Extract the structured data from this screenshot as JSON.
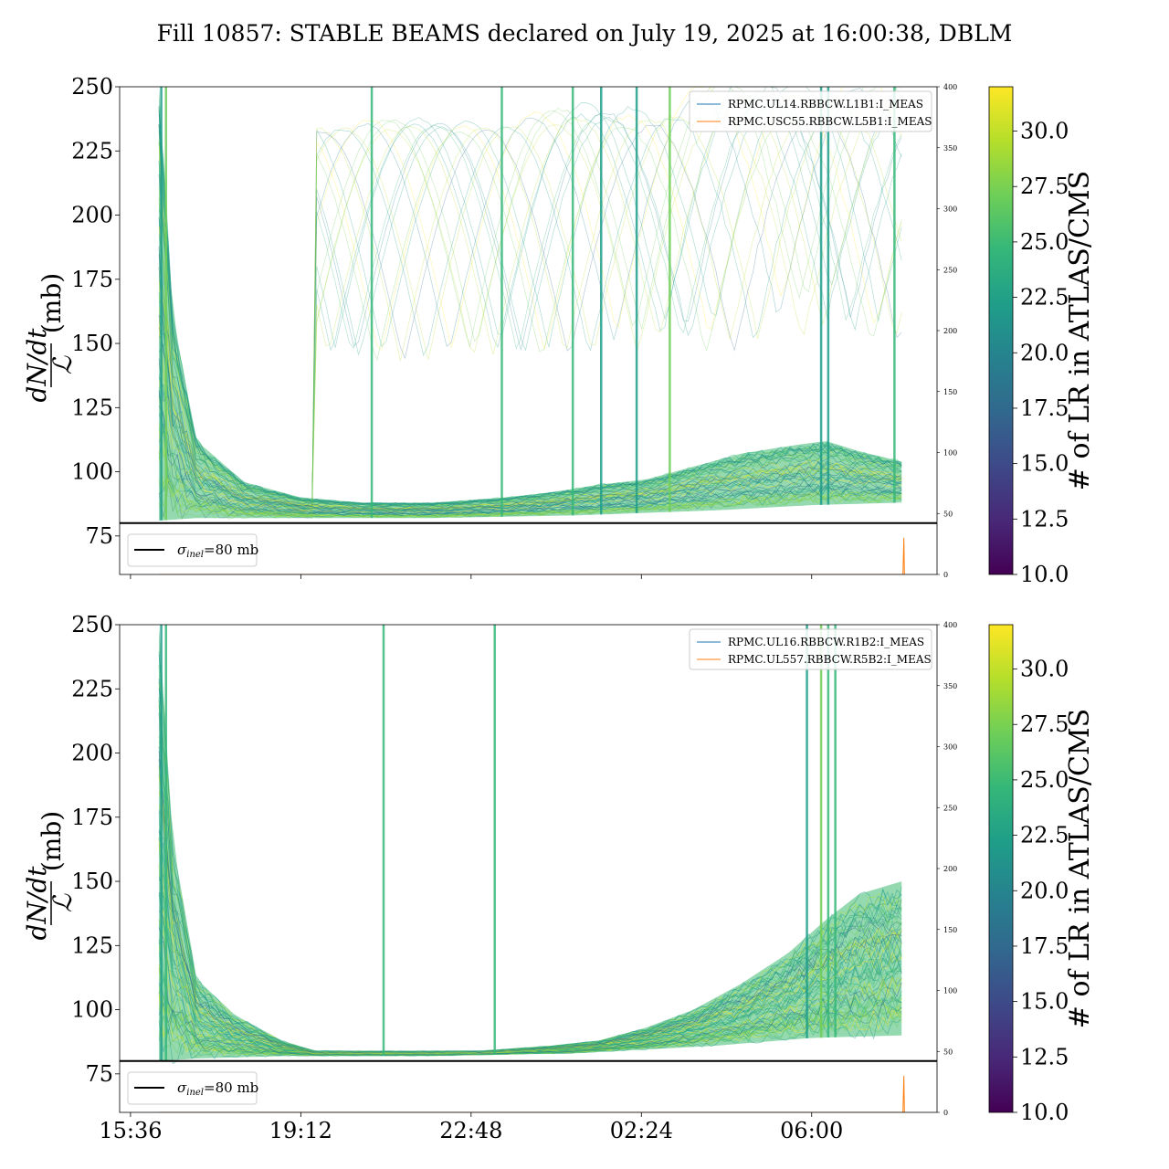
{
  "title": "Fill 10857: STABLE BEAMS declared on July 19, 2025 at 16:00:38, DBLM",
  "colors": {
    "cmap": [
      "#440154",
      "#482878",
      "#3e4989",
      "#31688e",
      "#26828e",
      "#1f9e89",
      "#35b779",
      "#6ece58",
      "#b5de2b",
      "#fde725"
    ],
    "legend_blue": "#1f77b4",
    "legend_orange": "#ff7f0e",
    "reference_line": "#000000",
    "dense_fill": "#3cb96f"
  },
  "chart_data": [
    {
      "type": "line",
      "panel": "top",
      "ylabel_expr": "dN/dt",
      "ylabel_denom": "ℒ",
      "ylabel_unit": "(mb)",
      "ylim": [
        60,
        250
      ],
      "yticks": [
        75,
        100,
        125,
        150,
        175,
        200,
        225,
        250
      ],
      "xlim_hours": [
        15.37,
        8.65
      ],
      "xticks": [
        "15:36",
        "19:12",
        "22:48",
        "02:24",
        "06:00"
      ],
      "show_xtick_labels": false,
      "right_axis": {
        "ylim": [
          0,
          400
        ],
        "ticks": [
          0,
          50,
          100,
          150,
          200,
          250,
          300,
          350,
          400
        ]
      },
      "legend": [
        "RPMC.UL14.RBBCW.L1B1:I_MEAS",
        "RPMC.USC55.RBBCW.L5B1:I_MEAS"
      ],
      "reference_line": {
        "y": 80,
        "label_symbol": "σ",
        "label_sub": "inel",
        "label_rest": "=80 mb"
      },
      "colorbar": {
        "label": "# of LR in ATLAS/CMS",
        "range": [
          10,
          32
        ],
        "ticks": [
          "10.0",
          "12.5",
          "15.0",
          "17.5",
          "20.0",
          "22.5",
          "25.0",
          "27.5",
          "30.0"
        ]
      },
      "bundle_upper_envelope": [
        [
          16.2,
          250
        ],
        [
          16.5,
          160
        ],
        [
          17.0,
          112
        ],
        [
          18.0,
          96
        ],
        [
          19.2,
          90
        ],
        [
          20.5,
          88
        ],
        [
          22.0,
          88
        ],
        [
          23.5,
          90
        ],
        [
          0.5,
          92
        ],
        [
          1.5,
          95
        ],
        [
          2.5,
          97
        ],
        [
          3.5,
          102
        ],
        [
          4.5,
          107
        ],
        [
          5.5,
          110
        ],
        [
          6.3,
          112
        ],
        [
          7.0,
          108
        ],
        [
          7.9,
          104
        ]
      ],
      "bundle_lower_envelope": [
        [
          16.2,
          81
        ],
        [
          17.0,
          82
        ],
        [
          19.0,
          82
        ],
        [
          22.0,
          82
        ],
        [
          1.0,
          83
        ],
        [
          4.0,
          85
        ],
        [
          6.0,
          87
        ],
        [
          7.9,
          88
        ]
      ],
      "current_traces": [
        [
          16.2,
          0
        ],
        [
          7.93,
          0
        ],
        [
          7.95,
          30
        ],
        [
          7.96,
          0
        ]
      ]
    },
    {
      "type": "line",
      "panel": "bottom",
      "ylabel_expr": "dN/dt",
      "ylabel_denom": "ℒ",
      "ylabel_unit": "(mb)",
      "ylim": [
        60,
        250
      ],
      "yticks": [
        75,
        100,
        125,
        150,
        175,
        200,
        225,
        250
      ],
      "xlim_hours": [
        15.37,
        8.65
      ],
      "xticks": [
        "15:36",
        "19:12",
        "22:48",
        "02:24",
        "06:00"
      ],
      "show_xtick_labels": true,
      "right_axis": {
        "ylim": [
          0,
          400
        ],
        "ticks": [
          0,
          50,
          100,
          150,
          200,
          250,
          300,
          350,
          400
        ]
      },
      "legend": [
        "RPMC.UL16.RBBCW.R1B2:I_MEAS",
        "RPMC.UL557.RBBCW.R5B2:I_MEAS"
      ],
      "reference_line": {
        "y": 80,
        "label_symbol": "σ",
        "label_sub": "inel",
        "label_rest": "=80 mb"
      },
      "colorbar": {
        "label": "# of LR in ATLAS/CMS",
        "range": [
          10,
          32
        ],
        "ticks": [
          "10.0",
          "12.5",
          "15.0",
          "17.5",
          "20.0",
          "22.5",
          "25.0",
          "27.5",
          "30.0"
        ]
      },
      "bundle_upper_envelope": [
        [
          16.2,
          250
        ],
        [
          16.5,
          165
        ],
        [
          17.0,
          112
        ],
        [
          17.8,
          98
        ],
        [
          18.8,
          88
        ],
        [
          19.5,
          84
        ],
        [
          21.0,
          84
        ],
        [
          23.0,
          84
        ],
        [
          0.5,
          86
        ],
        [
          1.5,
          88
        ],
        [
          2.5,
          93
        ],
        [
          3.5,
          100
        ],
        [
          4.5,
          110
        ],
        [
          5.5,
          122
        ],
        [
          6.3,
          135
        ],
        [
          7.0,
          145
        ],
        [
          7.9,
          150
        ]
      ],
      "bundle_lower_envelope": [
        [
          16.2,
          80
        ],
        [
          17.0,
          81
        ],
        [
          19.0,
          82
        ],
        [
          22.0,
          82
        ],
        [
          1.0,
          83
        ],
        [
          4.0,
          86
        ],
        [
          6.0,
          89
        ],
        [
          7.9,
          90
        ]
      ],
      "current_traces": [
        [
          16.2,
          0
        ],
        [
          7.93,
          0
        ],
        [
          7.95,
          30
        ],
        [
          7.96,
          0
        ]
      ]
    }
  ]
}
